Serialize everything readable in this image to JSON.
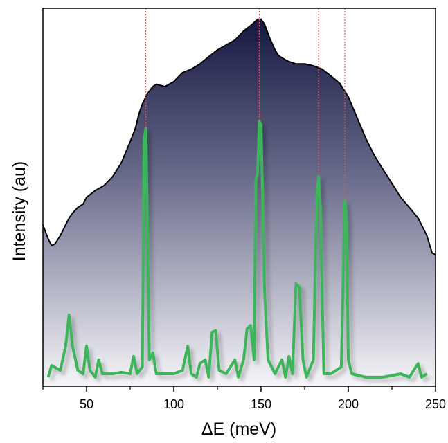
{
  "chart_data": {
    "type": "line",
    "x_label": "ΔE (meV)",
    "y_label": "Intensity (au)",
    "xlim": [
      25,
      250
    ],
    "xticks": [
      50,
      100,
      150,
      200,
      250
    ],
    "xminor_ticks": [
      25,
      75,
      125,
      175,
      225
    ],
    "ylim": [
      0,
      1
    ],
    "reference_lines": [
      84,
      149,
      183,
      198
    ],
    "reference_color": "#e8555a",
    "series": [
      {
        "color": "#10123d",
        "fill": "gradient",
        "x": [
          25,
          28,
          30,
          32,
          35,
          38,
          40,
          42,
          45,
          48,
          50,
          55,
          60,
          65,
          70,
          75,
          78,
          80,
          82,
          85,
          88,
          90,
          95,
          100,
          105,
          110,
          115,
          120,
          125,
          130,
          135,
          140,
          145,
          148,
          150,
          152,
          155,
          158,
          160,
          165,
          170,
          175,
          180,
          185,
          190,
          195,
          200,
          205,
          210,
          215,
          220,
          225,
          230,
          235,
          240,
          245,
          248,
          250
        ],
        "values": [
          0.427,
          0.39,
          0.372,
          0.377,
          0.399,
          0.427,
          0.445,
          0.458,
          0.473,
          0.482,
          0.5,
          0.518,
          0.531,
          0.555,
          0.592,
          0.647,
          0.683,
          0.72,
          0.747,
          0.775,
          0.793,
          0.799,
          0.793,
          0.806,
          0.83,
          0.839,
          0.853,
          0.872,
          0.89,
          0.903,
          0.916,
          0.94,
          0.958,
          0.971,
          0.971,
          0.958,
          0.921,
          0.89,
          0.875,
          0.861,
          0.853,
          0.853,
          0.848,
          0.839,
          0.821,
          0.802,
          0.766,
          0.711,
          0.656,
          0.61,
          0.573,
          0.537,
          0.5,
          0.473,
          0.445,
          0.399,
          0.353,
          0.348
        ]
      },
      {
        "color": "#3cb55a",
        "x": [
          28,
          30,
          35,
          38,
          40,
          42,
          45,
          48,
          50,
          52,
          55,
          57,
          59,
          65,
          70,
          75,
          77,
          79,
          82,
          83,
          84,
          85,
          86,
          88,
          90,
          95,
          100,
          105,
          108,
          110,
          113,
          115,
          118,
          120,
          122,
          124,
          126,
          130,
          135,
          137,
          140,
          142,
          144,
          146,
          147,
          148,
          149,
          150,
          151,
          152,
          154,
          158,
          162,
          164,
          166,
          168,
          170,
          172,
          174,
          176,
          180,
          182,
          183,
          184,
          186,
          190,
          196,
          198,
          199,
          200,
          202,
          210,
          220,
          230,
          235,
          240,
          242,
          245
        ],
        "values": [
          0.024,
          0.055,
          0.042,
          0.106,
          0.189,
          0.106,
          0.042,
          0.033,
          0.106,
          0.042,
          0.024,
          0.07,
          0.033,
          0.033,
          0.037,
          0.033,
          0.079,
          0.033,
          0.051,
          0.656,
          0.683,
          0.381,
          0.07,
          0.088,
          0.033,
          0.033,
          0.033,
          0.042,
          0.106,
          0.033,
          0.024,
          0.06,
          0.07,
          0.024,
          0.143,
          0.147,
          0.042,
          0.033,
          0.07,
          0.024,
          0.07,
          0.152,
          0.161,
          0.07,
          0.546,
          0.564,
          0.701,
          0.692,
          0.473,
          0.253,
          0.07,
          0.033,
          0.07,
          0.024,
          0.079,
          0.033,
          0.271,
          0.262,
          0.07,
          0.024,
          0.07,
          0.509,
          0.555,
          0.473,
          0.033,
          0.033,
          0.051,
          0.491,
          0.436,
          0.07,
          0.033,
          0.024,
          0.024,
          0.033,
          0.024,
          0.06,
          0.024,
          0.033
        ]
      }
    ]
  }
}
